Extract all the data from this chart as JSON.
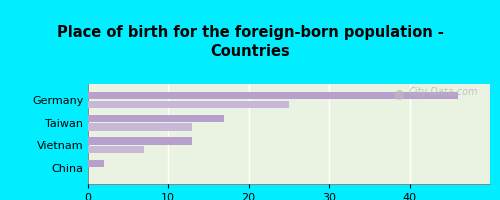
{
  "title": "Place of birth for the foreign-born population -\nCountries",
  "categories": [
    "China",
    "Vietnam",
    "Taiwan",
    "Germany"
  ],
  "bars1": [
    2,
    13,
    17,
    46
  ],
  "bars2": [
    0,
    7,
    13,
    25
  ],
  "bar_color1": "#b8a0cc",
  "bar_color2": "#c8b8d8",
  "background_cyan": "#00eeff",
  "background_chart": "#eaf2e2",
  "xlim": [
    0,
    50
  ],
  "xticks": [
    0,
    10,
    20,
    30,
    40
  ],
  "bar_height": 0.32,
  "watermark_text": "City-Data.com"
}
